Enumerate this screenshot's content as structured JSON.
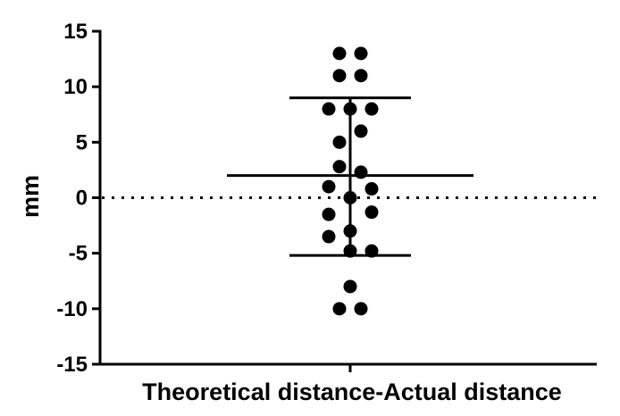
{
  "chart_data": {
    "type": "scatter",
    "title": "",
    "xlabel": "Theoretical distance-Actual distance",
    "ylabel": "mm",
    "ylim": [
      -15,
      15
    ],
    "yticks": [
      -15,
      -10,
      -5,
      0,
      5,
      10,
      15
    ],
    "ytick_labels": [
      "-15",
      "-10",
      "-5",
      "0",
      "5",
      "10",
      "15"
    ],
    "reference_line": {
      "y": 0,
      "style": "dotted"
    },
    "summary": {
      "mean": 2.0,
      "upper": 9.0,
      "lower": -5.2
    },
    "points": [
      {
        "offset": -1,
        "y": 13
      },
      {
        "offset": 1,
        "y": 13
      },
      {
        "offset": -1,
        "y": 11
      },
      {
        "offset": 1,
        "y": 11
      },
      {
        "offset": -2,
        "y": 8
      },
      {
        "offset": 0,
        "y": 8
      },
      {
        "offset": 2,
        "y": 8
      },
      {
        "offset": 1,
        "y": 6
      },
      {
        "offset": -1,
        "y": 5
      },
      {
        "offset": -1,
        "y": 2.8
      },
      {
        "offset": 1,
        "y": 2.3
      },
      {
        "offset": -2,
        "y": 1
      },
      {
        "offset": 2,
        "y": 0.8
      },
      {
        "offset": 0,
        "y": 0
      },
      {
        "offset": -2,
        "y": -1.5
      },
      {
        "offset": 2,
        "y": -1.3
      },
      {
        "offset": 0,
        "y": -3
      },
      {
        "offset": -2,
        "y": -3.5
      },
      {
        "offset": 0,
        "y": -4.8
      },
      {
        "offset": 2,
        "y": -4.8
      },
      {
        "offset": 0,
        "y": -8
      },
      {
        "offset": -1,
        "y": -10
      },
      {
        "offset": 1,
        "y": -10
      }
    ]
  }
}
